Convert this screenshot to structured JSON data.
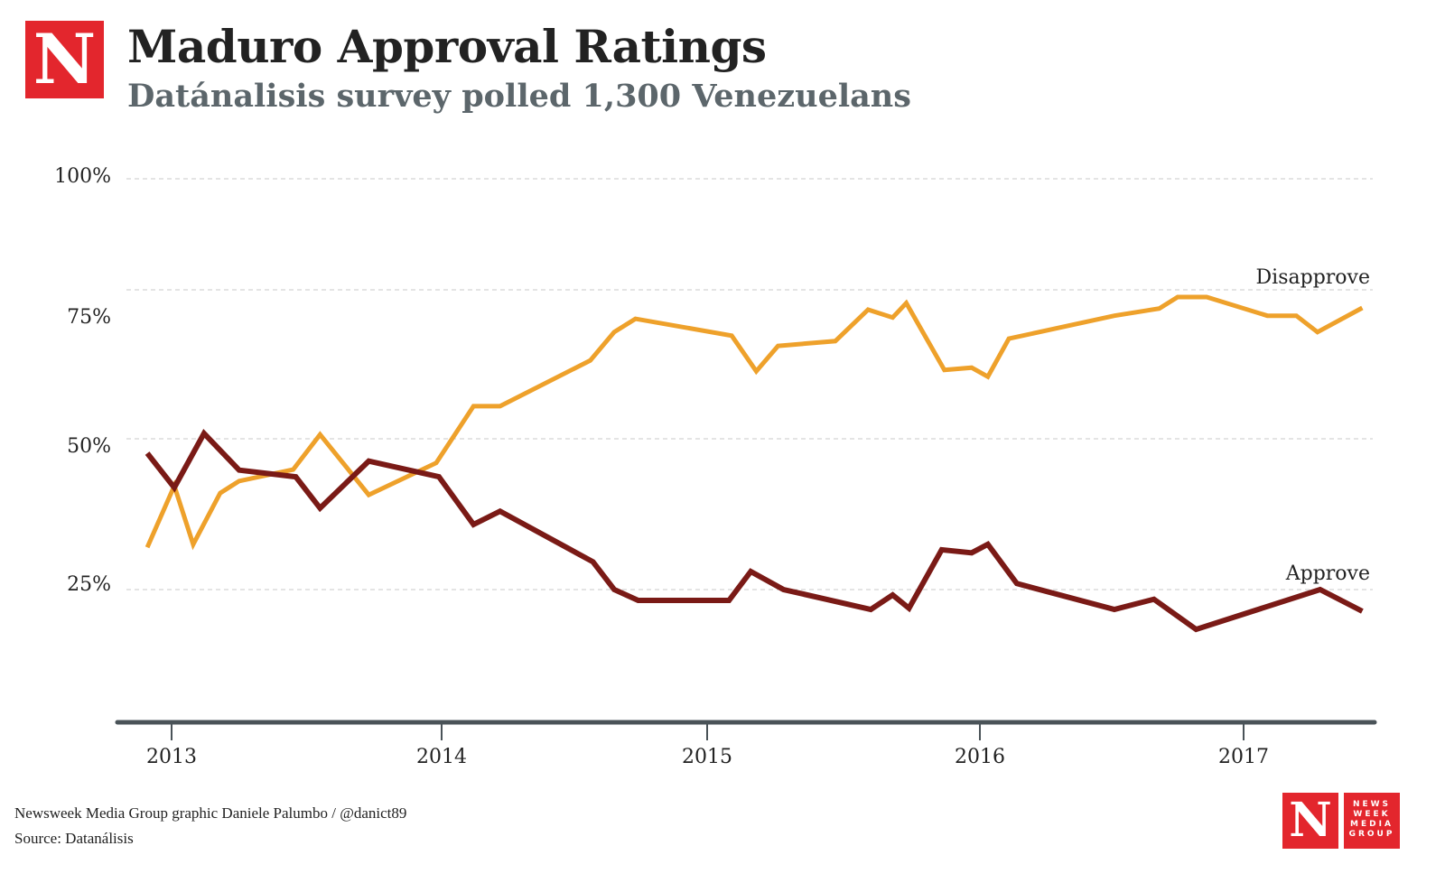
{
  "header": {
    "logo": "N",
    "title": "Maduro Approval Ratings",
    "subtitle": "Datánalisis survey polled 1,300 Venezuelans"
  },
  "footer": {
    "credit": "Newsweek Media Group graphic Daniele Palumbo / @danict89",
    "source": "Source: Datanálisis",
    "logo_n": "N",
    "logo_text": [
      "NEWS",
      "WEEK",
      "MEDIA",
      "GROUP"
    ]
  },
  "chart_data": {
    "type": "line",
    "title": "Maduro Approval Ratings",
    "subtitle": "Datánalisis survey polled 1,300 Venezuelans",
    "xlabel": "",
    "ylabel": "",
    "y_ticks": [
      "100%",
      "75%",
      "50%",
      "25%"
    ],
    "y_tick_values": [
      100,
      75,
      50,
      25
    ],
    "x_ticks": [
      "2013",
      "2014",
      "2015",
      "2016",
      "2017"
    ],
    "x_tick_values": [
      2013,
      2014,
      2015,
      2016,
      2017
    ],
    "grid": true,
    "colors": {
      "Approve": "#7a1a16",
      "Disapprove": "#eea12b"
    },
    "series": [
      {
        "name": "Disapprove",
        "label": "Disapprove",
        "x": [
          2012.91,
          2013.01,
          2013.08,
          2013.18,
          2013.25,
          2013.45,
          2013.55,
          2013.73,
          2013.98,
          2014.12,
          2014.22,
          2014.56,
          2014.65,
          2014.73,
          2015.09,
          2015.18,
          2015.26,
          2015.47,
          2015.59,
          2015.68,
          2015.73,
          2015.87,
          2015.97,
          2016.03,
          2016.11,
          2016.51,
          2016.68,
          2016.75,
          2016.86,
          2017.09,
          2017.2,
          2017.28,
          2017.45
        ],
        "values": [
          32,
          42.2,
          32.5,
          41,
          43,
          44.9,
          50.7,
          40.7,
          46,
          55.4,
          55.4,
          63,
          67.7,
          69.9,
          67.1,
          61.2,
          65.4,
          66.2,
          71.4,
          70.1,
          72.5,
          61.4,
          61.8,
          60.3,
          66.6,
          70.4,
          71.6,
          73.5,
          73.5,
          70.4,
          70.4,
          67.7,
          71.7
        ]
      },
      {
        "name": "Approve",
        "label": "Approve",
        "x": [
          2012.91,
          2013.01,
          2013.12,
          2013.25,
          2013.46,
          2013.55,
          2013.73,
          2013.99,
          2014.12,
          2014.22,
          2014.57,
          2014.65,
          2014.74,
          2015.08,
          2015.16,
          2015.28,
          2015.6,
          2015.68,
          2015.74,
          2015.86,
          2015.97,
          2016.03,
          2016.14,
          2016.51,
          2016.66,
          2016.82,
          2017.29,
          2017.45
        ],
        "values": [
          47.6,
          41.9,
          50.9,
          44.8,
          43.7,
          38.5,
          46.3,
          43.7,
          35.8,
          38,
          29.6,
          25,
          23.2,
          23.2,
          28,
          25,
          21.7,
          24.1,
          21.9,
          31.6,
          31.1,
          32.5,
          26,
          21.7,
          23.4,
          18.4,
          25,
          21.4
        ]
      }
    ]
  }
}
